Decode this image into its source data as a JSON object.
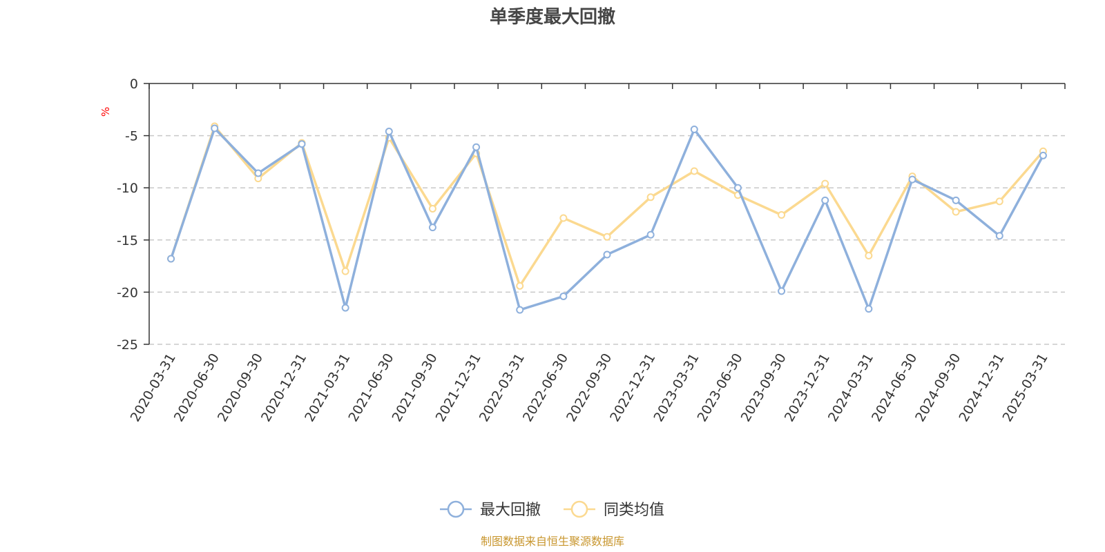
{
  "chart_data": {
    "type": "line",
    "title": "单季度最大回撤",
    "ylabel": "%",
    "xlabel": "",
    "ylim": [
      -25,
      0
    ],
    "yticks": [
      0,
      -5,
      -10,
      -15,
      -20,
      -25
    ],
    "grid": true,
    "legend_position": "bottom",
    "categories": [
      "2020-03-31",
      "2020-06-30",
      "2020-09-30",
      "2020-12-31",
      "2021-03-31",
      "2021-06-30",
      "2021-09-30",
      "2021-12-31",
      "2022-03-31",
      "2022-06-30",
      "2022-09-30",
      "2022-12-31",
      "2023-03-31",
      "2023-06-30",
      "2023-09-30",
      "2023-12-31",
      "2024-03-31",
      "2024-06-30",
      "2024-09-30",
      "2024-12-31",
      "2025-03-31"
    ],
    "series": [
      {
        "name": "最大回撤",
        "color": "#8eb0dc",
        "values": [
          -16.8,
          -4.3,
          -8.6,
          -5.8,
          -21.5,
          -4.6,
          -13.8,
          -6.1,
          -21.7,
          -20.4,
          -16.4,
          -14.5,
          -4.4,
          -10.0,
          -19.9,
          -11.2,
          -21.6,
          -9.2,
          -11.2,
          -14.6,
          -6.9
        ]
      },
      {
        "name": "同类均值",
        "color": "#fbd990",
        "values": [
          -16.8,
          -4.1,
          -9.1,
          -5.7,
          -18.0,
          -5.2,
          -12.0,
          -6.7,
          -19.4,
          -12.9,
          -14.7,
          -10.9,
          -8.4,
          -10.7,
          -12.6,
          -9.6,
          -16.5,
          -8.9,
          -12.3,
          -11.3,
          -6.5
        ]
      }
    ]
  },
  "source": "制图数据来自恒生聚源数据库"
}
